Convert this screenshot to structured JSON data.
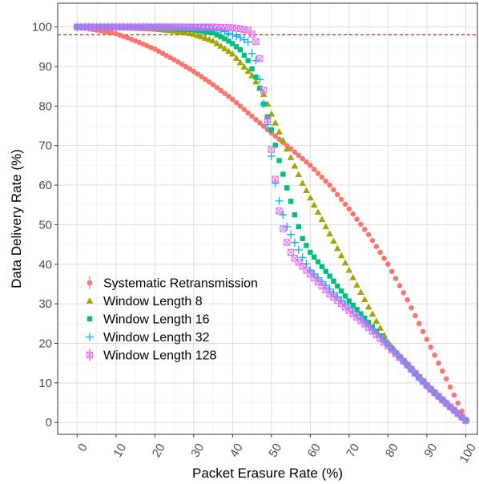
{
  "chart_data": {
    "type": "scatter",
    "title": "",
    "xlabel": "Packet Erasure Rate (%)",
    "ylabel": "Data Delivery Rate (%)",
    "xlim": [
      -5,
      103
    ],
    "ylim": [
      -3,
      106
    ],
    "x_ticks": [
      "0",
      "10",
      "20",
      "30",
      "40",
      "50",
      "60",
      "70",
      "80",
      "90",
      "100"
    ],
    "y_ticks": [
      "0",
      "10",
      "20",
      "30",
      "40",
      "50",
      "60",
      "70",
      "80",
      "90",
      "100"
    ],
    "x_tick_rotation": -60,
    "grid": true,
    "legend_position": "bottom-left",
    "reference_line": {
      "y": 98,
      "style": "dashed",
      "color": "#cc0000"
    },
    "series": [
      {
        "name": "Systematic Retransmission",
        "marker": "circle",
        "color": "#F8766D",
        "x": [
          0,
          5,
          10,
          15,
          20,
          25,
          30,
          35,
          40,
          45,
          50,
          55,
          60,
          65,
          70,
          75,
          80,
          85,
          90,
          95,
          100
        ],
        "y": [
          100,
          99.2,
          98.3,
          96.5,
          94.4,
          91.7,
          88.8,
          85.4,
          81.7,
          77.4,
          73.2,
          69.2,
          65,
          60,
          54,
          47.5,
          40,
          31,
          21,
          11,
          0.8
        ]
      },
      {
        "name": "Window Length 8",
        "marker": "triangle",
        "color": "#A3A500",
        "x": [
          0,
          10,
          20,
          25,
          30,
          35,
          40,
          45,
          48,
          50,
          52,
          55,
          58,
          60,
          65,
          70,
          75,
          80,
          85,
          90,
          95,
          100
        ],
        "y": [
          100,
          99.9,
          99.5,
          99,
          98.2,
          96.5,
          93.2,
          87.7,
          83,
          78,
          73.5,
          67,
          60.5,
          56.8,
          47.7,
          38.5,
          29.2,
          20.3,
          14.5,
          9.3,
          4.8,
          0.5
        ]
      },
      {
        "name": "Window Length 16",
        "marker": "square",
        "color": "#00BF7D",
        "x": [
          0,
          10,
          20,
          30,
          35,
          38,
          40,
          42,
          44,
          46,
          47,
          48,
          50,
          52,
          54,
          56,
          58,
          60,
          65,
          70,
          75,
          80,
          85,
          90,
          95,
          100
        ],
        "y": [
          100,
          100,
          99.8,
          99.3,
          98.5,
          97,
          95.8,
          94.2,
          91.5,
          87.3,
          84.5,
          80.5,
          74,
          66.2,
          59.3,
          52.5,
          46.5,
          43,
          37,
          30.7,
          25.3,
          19.7,
          14.5,
          9.3,
          4.8,
          0.5
        ]
      },
      {
        "name": "Window Length 32",
        "marker": "plus",
        "color": "#00B0F6",
        "x": [
          0,
          10,
          20,
          30,
          35,
          38,
          40,
          42,
          44,
          45,
          46,
          47,
          48,
          49,
          50,
          51,
          52,
          53,
          54,
          56,
          58,
          60,
          65,
          70,
          75,
          80,
          85,
          90,
          95,
          100
        ],
        "y": [
          100,
          100,
          100,
          99.8,
          99.5,
          98.8,
          98,
          97.3,
          96.2,
          93.3,
          91.5,
          86.7,
          80.5,
          75.3,
          67.3,
          60.5,
          56,
          52.5,
          49.5,
          45.5,
          41.7,
          38.5,
          33.7,
          29,
          24.5,
          19.5,
          14.5,
          9.3,
          4.8,
          0.5
        ]
      },
      {
        "name": "Window Length 128",
        "marker": "boxcross",
        "color": "#E76BF3",
        "x": [
          0,
          10,
          20,
          30,
          35,
          40,
          42,
          44,
          45,
          46,
          47,
          48,
          49,
          50,
          51,
          52,
          53,
          54,
          55,
          56,
          58,
          60,
          65,
          70,
          75,
          80,
          85,
          90,
          95,
          100
        ],
        "y": [
          100,
          100,
          100,
          100,
          100,
          99.8,
          99.5,
          99.2,
          98.2,
          96.3,
          92,
          84,
          76.5,
          69,
          61.5,
          53.5,
          49,
          45.5,
          43,
          41.5,
          39.5,
          37.5,
          32.5,
          28.3,
          24,
          19.3,
          14.5,
          9.3,
          4.8,
          0.5
        ]
      }
    ]
  }
}
